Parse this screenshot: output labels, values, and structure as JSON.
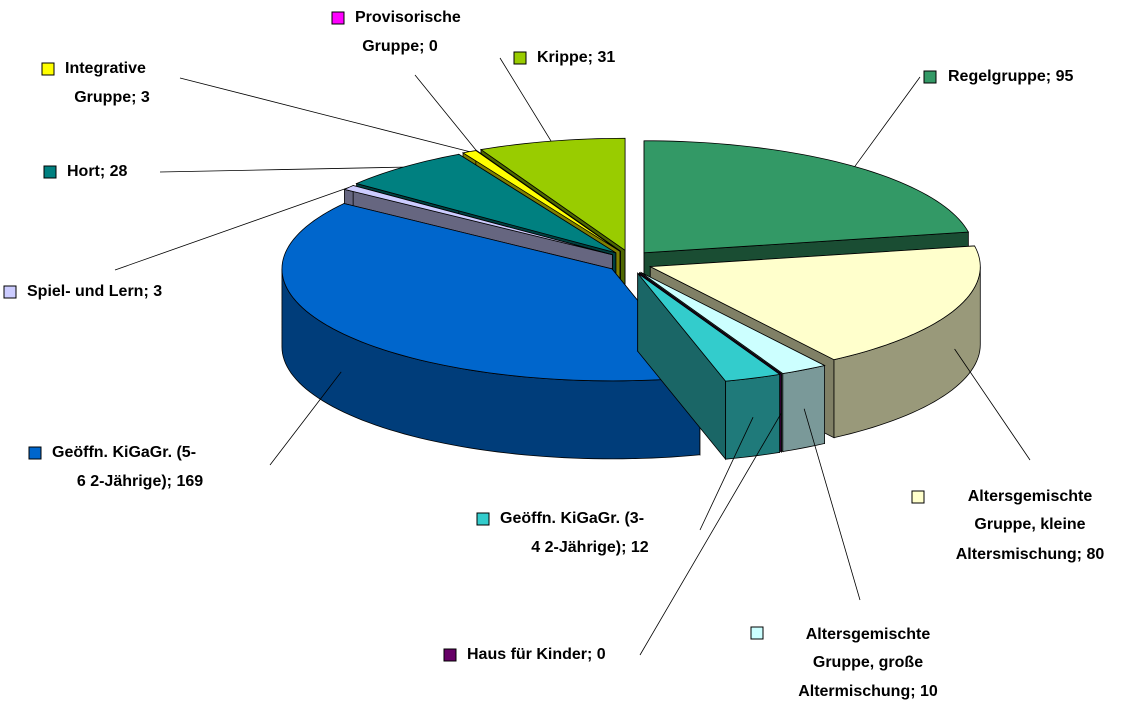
{
  "chart_data": {
    "type": "pie3d",
    "categories": [
      "Regelgruppe",
      "Altersgemischte Gruppe, kleine Altersmischung",
      "Altersgemischte Gruppe, große Altermischung",
      "Haus für Kinder",
      "Geöffn. KiGaGr. (3-4 2-Jährige)",
      "Geöffn. KiGaGr. (5-6 2-Jährige)",
      "Spiel- und Lern",
      "Hort",
      "Integrative Gruppe",
      "Provisorische Gruppe",
      "Krippe"
    ],
    "values": [
      95,
      80,
      10,
      0,
      12,
      169,
      3,
      28,
      3,
      0,
      31
    ],
    "value_labels": [
      [
        "Regelgruppe; 95"
      ],
      [
        "Altersgemischte",
        "Gruppe, kleine",
        "Altersmischung; 80"
      ],
      [
        "Altersgemischte",
        "Gruppe, große",
        "Altermischung; 10"
      ],
      [
        "Haus für Kinder; 0"
      ],
      [
        "Geöffn. KiGaGr. (3-",
        "4 2-Jährige); 12"
      ],
      [
        "Geöffn. KiGaGr. (5-",
        "6 2-Jährige); 169"
      ],
      [
        "Spiel- und Lern; 3"
      ],
      [
        "Hort; 28"
      ],
      [
        "Integrative",
        "Gruppe; 3"
      ],
      [
        "Provisorische",
        "Gruppe; 0"
      ],
      [
        "Krippe; 31"
      ]
    ],
    "colors": [
      "#339966",
      "#FFFFCC",
      "#CCFFFF",
      "#660066",
      "#33CCCC",
      "#0066CC",
      "#CCCCFF",
      "#008080",
      "#FFFF00",
      "#FF00FF",
      "#99CC00"
    ]
  }
}
